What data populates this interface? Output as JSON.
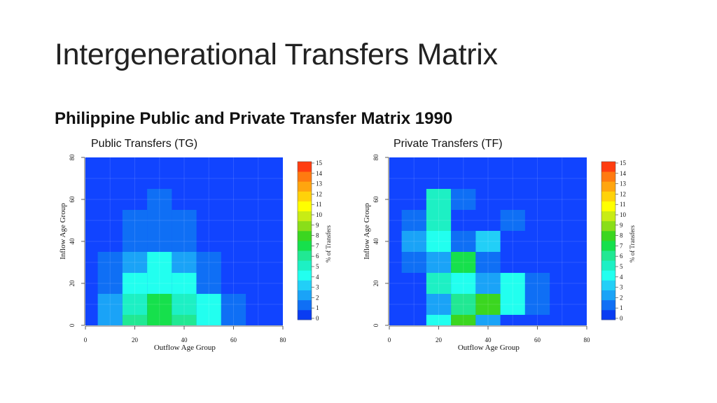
{
  "slide": {
    "title": "Intergenerational Transfers Matrix",
    "subtitle": "Philippine Public and Private Transfer Matrix 1990"
  },
  "colorbar": {
    "label": "% of Transfers",
    "ticks": [
      "0",
      "1",
      "2",
      "3",
      "4",
      "5",
      "6",
      "7",
      "8",
      "9",
      "10",
      "11",
      "12",
      "13",
      "14",
      "15"
    ],
    "colors": [
      "#0a3cf2",
      "#0f6ff5",
      "#1aa3f7",
      "#22cff7",
      "#22ffef",
      "#1df0c4",
      "#21e893",
      "#16e04c",
      "#3bd620",
      "#8ade19",
      "#c8ec15",
      "#ffff00",
      "#ffd20a",
      "#ffa50f",
      "#ff7a10",
      "#ff3d10"
    ],
    "background": "#1144ff"
  },
  "chart_data": [
    {
      "type": "heatmap",
      "title": "Public Transfers (TG)",
      "xlabel": "Outflow Age Group",
      "ylabel": "Inflow Age Group",
      "xlim": [
        0,
        80
      ],
      "ylim": [
        0,
        80
      ],
      "x_ticks": [
        "0",
        "20",
        "40",
        "60",
        "80"
      ],
      "y_ticks": [
        "0",
        "20",
        "40",
        "60",
        "80"
      ],
      "value_unit": "% of Transfers",
      "cells": [
        {
          "x": [
            5,
            15
          ],
          "y": [
            0,
            5
          ],
          "value": 2
        },
        {
          "x": [
            15,
            25
          ],
          "y": [
            0,
            5
          ],
          "value": 6
        },
        {
          "x": [
            25,
            35
          ],
          "y": [
            0,
            5
          ],
          "value": 7
        },
        {
          "x": [
            35,
            45
          ],
          "y": [
            0,
            5
          ],
          "value": 6
        },
        {
          "x": [
            45,
            55
          ],
          "y": [
            0,
            5
          ],
          "value": 4
        },
        {
          "x": [
            55,
            65
          ],
          "y": [
            0,
            5
          ],
          "value": 1
        },
        {
          "x": [
            5,
            15
          ],
          "y": [
            5,
            15
          ],
          "value": 2
        },
        {
          "x": [
            15,
            25
          ],
          "y": [
            5,
            15
          ],
          "value": 5
        },
        {
          "x": [
            25,
            35
          ],
          "y": [
            5,
            15
          ],
          "value": 7
        },
        {
          "x": [
            35,
            45
          ],
          "y": [
            5,
            15
          ],
          "value": 5
        },
        {
          "x": [
            45,
            55
          ],
          "y": [
            5,
            15
          ],
          "value": 4
        },
        {
          "x": [
            55,
            65
          ],
          "y": [
            5,
            15
          ],
          "value": 1
        },
        {
          "x": [
            5,
            15
          ],
          "y": [
            15,
            25
          ],
          "value": 1
        },
        {
          "x": [
            15,
            25
          ],
          "y": [
            15,
            25
          ],
          "value": 4
        },
        {
          "x": [
            25,
            35
          ],
          "y": [
            15,
            25
          ],
          "value": 4
        },
        {
          "x": [
            35,
            45
          ],
          "y": [
            15,
            25
          ],
          "value": 4
        },
        {
          "x": [
            45,
            55
          ],
          "y": [
            15,
            25
          ],
          "value": 1
        },
        {
          "x": [
            5,
            15
          ],
          "y": [
            25,
            35
          ],
          "value": 1
        },
        {
          "x": [
            15,
            25
          ],
          "y": [
            25,
            35
          ],
          "value": 2
        },
        {
          "x": [
            25,
            35
          ],
          "y": [
            25,
            35
          ],
          "value": 4
        },
        {
          "x": [
            35,
            45
          ],
          "y": [
            25,
            35
          ],
          "value": 2
        },
        {
          "x": [
            45,
            55
          ],
          "y": [
            25,
            35
          ],
          "value": 1
        },
        {
          "x": [
            15,
            25
          ],
          "y": [
            35,
            45
          ],
          "value": 1
        },
        {
          "x": [
            25,
            35
          ],
          "y": [
            35,
            45
          ],
          "value": 1
        },
        {
          "x": [
            35,
            45
          ],
          "y": [
            35,
            45
          ],
          "value": 1
        },
        {
          "x": [
            15,
            25
          ],
          "y": [
            45,
            55
          ],
          "value": 1
        },
        {
          "x": [
            25,
            35
          ],
          "y": [
            45,
            55
          ],
          "value": 1
        },
        {
          "x": [
            35,
            45
          ],
          "y": [
            45,
            55
          ],
          "value": 1
        },
        {
          "x": [
            25,
            35
          ],
          "y": [
            55,
            65
          ],
          "value": 1
        }
      ]
    },
    {
      "type": "heatmap",
      "title": "Private Transfers (TF)",
      "xlabel": "Outflow Age Group",
      "ylabel": "Inflow Age Group",
      "xlim": [
        0,
        80
      ],
      "ylim": [
        0,
        80
      ],
      "x_ticks": [
        "0",
        "20",
        "40",
        "60",
        "80"
      ],
      "y_ticks": [
        "0",
        "20",
        "40",
        "60",
        "80"
      ],
      "value_unit": "% of Transfers",
      "cells": [
        {
          "x": [
            15,
            25
          ],
          "y": [
            0,
            5
          ],
          "value": 4
        },
        {
          "x": [
            25,
            35
          ],
          "y": [
            0,
            5
          ],
          "value": 8
        },
        {
          "x": [
            35,
            45
          ],
          "y": [
            0,
            5
          ],
          "value": 2
        },
        {
          "x": [
            15,
            25
          ],
          "y": [
            5,
            15
          ],
          "value": 2
        },
        {
          "x": [
            25,
            35
          ],
          "y": [
            5,
            15
          ],
          "value": 6
        },
        {
          "x": [
            35,
            45
          ],
          "y": [
            5,
            15
          ],
          "value": 8
        },
        {
          "x": [
            45,
            55
          ],
          "y": [
            5,
            15
          ],
          "value": 4
        },
        {
          "x": [
            55,
            65
          ],
          "y": [
            5,
            15
          ],
          "value": 1
        },
        {
          "x": [
            15,
            25
          ],
          "y": [
            15,
            25
          ],
          "value": 5
        },
        {
          "x": [
            25,
            35
          ],
          "y": [
            15,
            25
          ],
          "value": 4
        },
        {
          "x": [
            35,
            45
          ],
          "y": [
            15,
            25
          ],
          "value": 2
        },
        {
          "x": [
            45,
            55
          ],
          "y": [
            15,
            25
          ],
          "value": 4
        },
        {
          "x": [
            55,
            65
          ],
          "y": [
            15,
            25
          ],
          "value": 1
        },
        {
          "x": [
            5,
            15
          ],
          "y": [
            25,
            35
          ],
          "value": 1
        },
        {
          "x": [
            15,
            25
          ],
          "y": [
            25,
            35
          ],
          "value": 2
        },
        {
          "x": [
            25,
            35
          ],
          "y": [
            25,
            35
          ],
          "value": 7
        },
        {
          "x": [
            35,
            45
          ],
          "y": [
            25,
            35
          ],
          "value": 1
        },
        {
          "x": [
            5,
            15
          ],
          "y": [
            35,
            45
          ],
          "value": 2
        },
        {
          "x": [
            15,
            25
          ],
          "y": [
            35,
            45
          ],
          "value": 4
        },
        {
          "x": [
            25,
            35
          ],
          "y": [
            35,
            45
          ],
          "value": 1
        },
        {
          "x": [
            35,
            45
          ],
          "y": [
            35,
            45
          ],
          "value": 3
        },
        {
          "x": [
            5,
            15
          ],
          "y": [
            45,
            55
          ],
          "value": 1
        },
        {
          "x": [
            15,
            25
          ],
          "y": [
            45,
            55
          ],
          "value": 5
        },
        {
          "x": [
            45,
            55
          ],
          "y": [
            45,
            55
          ],
          "value": 1
        },
        {
          "x": [
            15,
            25
          ],
          "y": [
            55,
            65
          ],
          "value": 5
        },
        {
          "x": [
            25,
            35
          ],
          "y": [
            55,
            65
          ],
          "value": 1
        }
      ]
    }
  ]
}
